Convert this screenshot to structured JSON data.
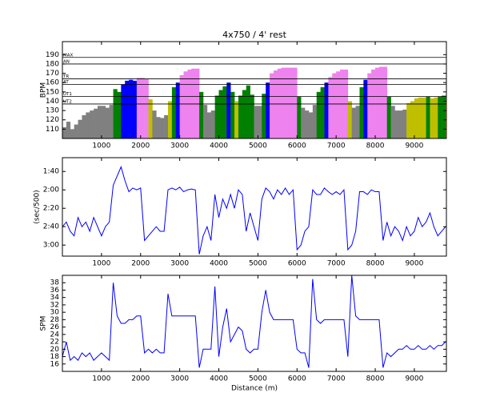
{
  "chart_data": [
    {
      "type": "zone-bar",
      "title": "4x750 / 4' rest",
      "ylabel": "BPM",
      "x": [
        0,
        100,
        200,
        300,
        400,
        500,
        600,
        700,
        800,
        900,
        1000,
        1100,
        1200,
        1300,
        1400,
        1500,
        1600,
        1700,
        1800,
        1900,
        2000,
        2100,
        2200,
        2300,
        2400,
        2500,
        2600,
        2700,
        2800,
        2900,
        3000,
        3100,
        3200,
        3300,
        3400,
        3500,
        3600,
        3700,
        3800,
        3900,
        4000,
        4100,
        4200,
        4300,
        4400,
        4500,
        4600,
        4700,
        4800,
        4900,
        5000,
        5100,
        5200,
        5300,
        5400,
        5500,
        5600,
        5700,
        5800,
        5900,
        6000,
        6100,
        6200,
        6300,
        6400,
        6500,
        6600,
        6700,
        6800,
        6900,
        7000,
        7100,
        7200,
        7300,
        7400,
        7500,
        7600,
        7700,
        7800,
        7900,
        8000,
        8100,
        8200,
        8300,
        8400,
        8500,
        8600,
        8700,
        8800,
        8900,
        9000,
        9100,
        9200,
        9300,
        9400,
        9500,
        9600,
        9700,
        9800
      ],
      "values": [
        112,
        118,
        110,
        115,
        120,
        125,
        128,
        130,
        132,
        135,
        135,
        133,
        136,
        153,
        150,
        158,
        162,
        163,
        162,
        165,
        165,
        164,
        142,
        130,
        123,
        122,
        125,
        140,
        155,
        160,
        168,
        172,
        174,
        175,
        175,
        150,
        136,
        128,
        130,
        146,
        152,
        156,
        160,
        150,
        140,
        146,
        152,
        157,
        147,
        135,
        135,
        148,
        160,
        170,
        173,
        175,
        176,
        176,
        176,
        176,
        145,
        133,
        130,
        128,
        136,
        150,
        155,
        160,
        166,
        170,
        172,
        174,
        174,
        140,
        133,
        135,
        155,
        163,
        170,
        174,
        176,
        177,
        177,
        145,
        135,
        130,
        130,
        131,
        138,
        140,
        143,
        144,
        144,
        145,
        143,
        144,
        145,
        146,
        141
      ],
      "base_color": "#808080",
      "zones": [
        {
          "label": "UT2",
          "value": 137,
          "color": "#bfbf00"
        },
        {
          "label": "UT1",
          "value": 145,
          "color": "#008000"
        },
        {
          "label": "AT",
          "value": 158,
          "color": "#0000ff"
        },
        {
          "label": "TR",
          "value": 164,
          "color": "#ee82ee"
        },
        {
          "label": "AN",
          "value": 180,
          "color": "#ee82ee"
        },
        {
          "label": "MAX",
          "value": 187,
          "color": "#ee82ee"
        }
      ],
      "xlim": [
        0,
        9820
      ],
      "xticks": [
        1000,
        2000,
        3000,
        4000,
        5000,
        6000,
        7000,
        8000,
        9000
      ],
      "ylim": [
        100,
        204
      ],
      "yticks": [
        110,
        120,
        130,
        140,
        150,
        160,
        170,
        180,
        190
      ]
    },
    {
      "type": "line",
      "ylabel": "(sec/500)",
      "color": "#0000ff",
      "inverted": true,
      "x": [
        0,
        100,
        200,
        300,
        400,
        500,
        600,
        700,
        800,
        900,
        1000,
        1100,
        1200,
        1300,
        1400,
        1500,
        1600,
        1700,
        1800,
        1900,
        2000,
        2100,
        2200,
        2300,
        2400,
        2500,
        2600,
        2700,
        2800,
        2900,
        3000,
        3100,
        3200,
        3300,
        3400,
        3500,
        3600,
        3700,
        3800,
        3900,
        4000,
        4100,
        4200,
        4300,
        4400,
        4500,
        4600,
        4700,
        4800,
        4900,
        5000,
        5100,
        5200,
        5300,
        5400,
        5500,
        5600,
        5700,
        5800,
        5900,
        6000,
        6100,
        6200,
        6300,
        6400,
        6500,
        6600,
        6700,
        6800,
        6900,
        7000,
        7100,
        7200,
        7300,
        7400,
        7500,
        7600,
        7700,
        7800,
        7900,
        8000,
        8100,
        8200,
        8300,
        8400,
        8500,
        8600,
        8700,
        8800,
        8900,
        9000,
        9100,
        9200,
        9300,
        9400,
        9500,
        9600,
        9700,
        9800
      ],
      "values": [
        160,
        155,
        165,
        170,
        150,
        160,
        155,
        165,
        150,
        160,
        170,
        160,
        155,
        115,
        105,
        95,
        110,
        122,
        118,
        120,
        118,
        175,
        170,
        165,
        160,
        165,
        165,
        120,
        118,
        120,
        117,
        122,
        120,
        119,
        120,
        190,
        170,
        160,
        175,
        125,
        150,
        130,
        140,
        125,
        140,
        120,
        125,
        165,
        145,
        160,
        175,
        130,
        118,
        122,
        130,
        120,
        125,
        118,
        125,
        120,
        185,
        180,
        165,
        160,
        120,
        125,
        125,
        118,
        122,
        125,
        122,
        125,
        120,
        185,
        180,
        165,
        122,
        122,
        125,
        120,
        122,
        122,
        175,
        155,
        170,
        160,
        165,
        175,
        160,
        170,
        165,
        150,
        160,
        155,
        145,
        160,
        170,
        165,
        160
      ],
      "xlim": [
        0,
        9820
      ],
      "xticks": [
        1000,
        2000,
        3000,
        4000,
        5000,
        6000,
        7000,
        8000,
        9000
      ],
      "ylim": [
        85,
        192
      ],
      "yticks": [
        {
          "value": 100,
          "label": "1:40"
        },
        {
          "value": 120,
          "label": "2:00"
        },
        {
          "value": 140,
          "label": "2:20"
        },
        {
          "value": 160,
          "label": "2:40"
        },
        {
          "value": 180,
          "label": "3:00"
        }
      ]
    },
    {
      "type": "line",
      "ylabel": "SPM",
      "xlabel": "Distance (m)",
      "color": "#0000ff",
      "x": [
        0,
        100,
        200,
        300,
        400,
        500,
        600,
        700,
        800,
        900,
        1000,
        1100,
        1200,
        1300,
        1400,
        1500,
        1600,
        1700,
        1800,
        1900,
        2000,
        2100,
        2200,
        2300,
        2400,
        2500,
        2600,
        2700,
        2800,
        2900,
        3000,
        3100,
        3200,
        3300,
        3400,
        3500,
        3600,
        3700,
        3800,
        3900,
        4000,
        4100,
        4200,
        4300,
        4400,
        4500,
        4600,
        4700,
        4800,
        4900,
        5000,
        5100,
        5200,
        5300,
        5400,
        5500,
        5600,
        5700,
        5800,
        5900,
        6000,
        6100,
        6200,
        6300,
        6400,
        6500,
        6600,
        6700,
        6800,
        6900,
        7000,
        7100,
        7200,
        7300,
        7400,
        7500,
        7600,
        7700,
        7800,
        7900,
        8000,
        8100,
        8200,
        8300,
        8400,
        8500,
        8600,
        8700,
        8800,
        8900,
        9000,
        9100,
        9200,
        9300,
        9400,
        9500,
        9600,
        9700,
        9800
      ],
      "values": [
        18,
        22,
        17,
        18,
        17,
        19,
        18,
        19,
        17,
        18,
        19,
        18,
        17,
        38,
        29,
        27,
        27,
        28,
        28,
        29,
        29,
        19,
        20,
        19,
        20,
        19,
        19,
        35,
        29,
        29,
        29,
        29,
        29,
        29,
        29,
        15,
        20,
        20,
        20,
        37,
        18,
        26,
        31,
        22,
        24,
        26,
        25,
        20,
        19,
        20,
        20,
        30,
        36,
        30,
        28,
        28,
        28,
        28,
        28,
        28,
        20,
        19,
        19,
        15,
        39,
        28,
        27,
        28,
        28,
        28,
        28,
        28,
        28,
        18,
        40,
        29,
        28,
        28,
        28,
        28,
        28,
        28,
        15,
        19,
        18,
        19,
        20,
        20,
        21,
        20,
        20,
        21,
        20,
        20,
        21,
        20,
        21,
        21,
        22
      ],
      "xlim": [
        0,
        9820
      ],
      "xticks": [
        1000,
        2000,
        3000,
        4000,
        5000,
        6000,
        7000,
        8000,
        9000
      ],
      "ylim": [
        14,
        40
      ],
      "yticks": [
        16,
        18,
        20,
        22,
        24,
        26,
        28,
        30,
        32,
        34,
        36,
        38
      ]
    }
  ]
}
